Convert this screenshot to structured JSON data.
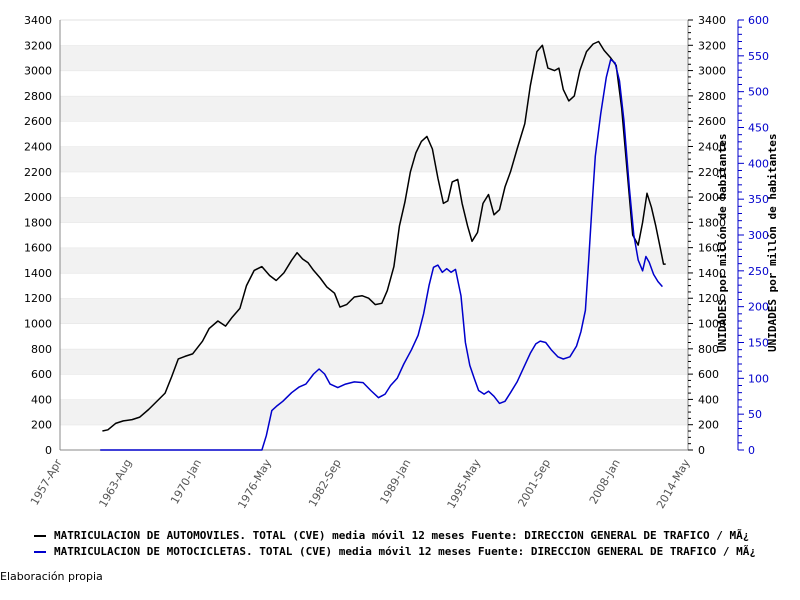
{
  "chart_data": {
    "type": "line",
    "x_ticks": [
      "1957-Apr",
      "1963-Aug",
      "1970-Jan",
      "1976-May",
      "1982-Sep",
      "1989-Jan",
      "1995-May",
      "2001-Sep",
      "2008-Jan",
      "2014-May"
    ],
    "ylim_left": [
      0,
      3400
    ],
    "yticks_left": [
      0,
      200,
      400,
      600,
      800,
      1000,
      1200,
      1400,
      1600,
      1800,
      2000,
      2200,
      2400,
      2600,
      2800,
      3000,
      3200,
      3400
    ],
    "ylim_right": [
      0,
      600
    ],
    "yticks_right": [
      0,
      50,
      100,
      150,
      200,
      250,
      300,
      350,
      400,
      450,
      500,
      550,
      600
    ],
    "ylabel_middle": "UNIDADES por millón de habitantes",
    "ylabel_right": "UNIDADES por millón de habitantes",
    "grid": "horizontal bands",
    "series": [
      {
        "name": "MATRICULACION DE AUTOMOVILES. TOTAL (CVE) media móvil 12 meses  Fuente: DIRECCION GENERAL DE TRAFICO / MÃ¿",
        "color": "#000000",
        "axis": "left",
        "points": [
          [
            1961.1,
            150
          ],
          [
            1961.6,
            160
          ],
          [
            1962.3,
            210
          ],
          [
            1963.0,
            230
          ],
          [
            1963.8,
            240
          ],
          [
            1964.5,
            260
          ],
          [
            1965.3,
            320
          ],
          [
            1966.0,
            380
          ],
          [
            1966.8,
            450
          ],
          [
            1967.4,
            580
          ],
          [
            1968.0,
            720
          ],
          [
            1968.6,
            740
          ],
          [
            1969.3,
            760
          ],
          [
            1970.2,
            860
          ],
          [
            1970.8,
            960
          ],
          [
            1971.6,
            1020
          ],
          [
            1972.3,
            980
          ],
          [
            1972.9,
            1050
          ],
          [
            1973.6,
            1120
          ],
          [
            1974.2,
            1300
          ],
          [
            1974.9,
            1420
          ],
          [
            1975.6,
            1450
          ],
          [
            1976.3,
            1380
          ],
          [
            1976.9,
            1340
          ],
          [
            1977.6,
            1400
          ],
          [
            1978.3,
            1500
          ],
          [
            1978.8,
            1560
          ],
          [
            1979.3,
            1510
          ],
          [
            1979.8,
            1480
          ],
          [
            1980.3,
            1420
          ],
          [
            1980.9,
            1360
          ],
          [
            1981.5,
            1290
          ],
          [
            1982.2,
            1240
          ],
          [
            1982.7,
            1130
          ],
          [
            1983.3,
            1150
          ],
          [
            1984.0,
            1210
          ],
          [
            1984.7,
            1220
          ],
          [
            1985.3,
            1200
          ],
          [
            1985.9,
            1150
          ],
          [
            1986.5,
            1160
          ],
          [
            1987.0,
            1260
          ],
          [
            1987.6,
            1450
          ],
          [
            1988.1,
            1770
          ],
          [
            1988.6,
            1960
          ],
          [
            1989.1,
            2200
          ],
          [
            1989.6,
            2350
          ],
          [
            1990.1,
            2440
          ],
          [
            1990.6,
            2480
          ],
          [
            1991.1,
            2380
          ],
          [
            1991.6,
            2150
          ],
          [
            1992.1,
            1950
          ],
          [
            1992.5,
            1970
          ],
          [
            1992.9,
            2120
          ],
          [
            1993.4,
            2140
          ],
          [
            1993.8,
            1950
          ],
          [
            1994.3,
            1770
          ],
          [
            1994.7,
            1650
          ],
          [
            1995.2,
            1720
          ],
          [
            1995.7,
            1950
          ],
          [
            1996.2,
            2020
          ],
          [
            1996.7,
            1860
          ],
          [
            1997.2,
            1900
          ],
          [
            1997.7,
            2080
          ],
          [
            1998.2,
            2200
          ],
          [
            1998.8,
            2380
          ],
          [
            1999.5,
            2580
          ],
          [
            2000.0,
            2880
          ],
          [
            2000.6,
            3150
          ],
          [
            2001.1,
            3200
          ],
          [
            2001.6,
            3020
          ],
          [
            2002.2,
            3000
          ],
          [
            2002.6,
            3020
          ],
          [
            2003.0,
            2850
          ],
          [
            2003.5,
            2760
          ],
          [
            2004.0,
            2800
          ],
          [
            2004.5,
            3000
          ],
          [
            2005.1,
            3150
          ],
          [
            2005.7,
            3210
          ],
          [
            2006.2,
            3230
          ],
          [
            2006.7,
            3160
          ],
          [
            2007.3,
            3100
          ],
          [
            2007.8,
            3040
          ],
          [
            2008.3,
            2700
          ],
          [
            2008.8,
            2200
          ],
          [
            2009.3,
            1700
          ],
          [
            2009.8,
            1620
          ],
          [
            2010.2,
            1800
          ],
          [
            2010.6,
            2030
          ],
          [
            2011.0,
            1920
          ],
          [
            2011.4,
            1770
          ],
          [
            2011.8,
            1600
          ],
          [
            2012.1,
            1470
          ],
          [
            2012.3,
            1470
          ]
        ]
      },
      {
        "name": "MATRICULACION DE MOTOCICLETAS. TOTAL (CVE) media móvil 12 meses  Fuente: DIRECCION GENERAL DE TRAFICO / MÃ¿",
        "color": "#0000cc",
        "axis": "right",
        "points": [
          [
            1960.9,
            0
          ],
          [
            1965.0,
            0
          ],
          [
            1970.0,
            0
          ],
          [
            1975.6,
            0
          ],
          [
            1976.0,
            20
          ],
          [
            1976.5,
            55
          ],
          [
            1977.0,
            62
          ],
          [
            1977.5,
            68
          ],
          [
            1978.3,
            80
          ],
          [
            1979.0,
            88
          ],
          [
            1979.6,
            92
          ],
          [
            1980.3,
            106
          ],
          [
            1980.8,
            113
          ],
          [
            1981.3,
            106
          ],
          [
            1981.8,
            92
          ],
          [
            1982.5,
            87
          ],
          [
            1983.2,
            92
          ],
          [
            1984.0,
            95
          ],
          [
            1984.8,
            94
          ],
          [
            1985.5,
            83
          ],
          [
            1986.2,
            73
          ],
          [
            1986.8,
            78
          ],
          [
            1987.3,
            90
          ],
          [
            1987.9,
            100
          ],
          [
            1988.5,
            120
          ],
          [
            1989.2,
            140
          ],
          [
            1989.8,
            160
          ],
          [
            1990.3,
            190
          ],
          [
            1990.8,
            230
          ],
          [
            1991.2,
            255
          ],
          [
            1991.6,
            258
          ],
          [
            1992.0,
            248
          ],
          [
            1992.4,
            253
          ],
          [
            1992.8,
            248
          ],
          [
            1993.2,
            252
          ],
          [
            1993.7,
            215
          ],
          [
            1994.1,
            150
          ],
          [
            1994.5,
            118
          ],
          [
            1994.9,
            100
          ],
          [
            1995.3,
            83
          ],
          [
            1995.8,
            78
          ],
          [
            1996.2,
            82
          ],
          [
            1996.7,
            75
          ],
          [
            1997.2,
            65
          ],
          [
            1997.7,
            68
          ],
          [
            1998.2,
            80
          ],
          [
            1998.8,
            95
          ],
          [
            1999.4,
            115
          ],
          [
            2000.0,
            135
          ],
          [
            2000.5,
            148
          ],
          [
            2000.9,
            152
          ],
          [
            2001.4,
            150
          ],
          [
            2001.9,
            140
          ],
          [
            2002.5,
            130
          ],
          [
            2003.0,
            127
          ],
          [
            2003.6,
            130
          ],
          [
            2004.2,
            145
          ],
          [
            2004.6,
            165
          ],
          [
            2005.0,
            195
          ],
          [
            2005.3,
            265
          ],
          [
            2005.6,
            340
          ],
          [
            2005.9,
            410
          ],
          [
            2006.4,
            470
          ],
          [
            2006.9,
            520
          ],
          [
            2007.3,
            545
          ],
          [
            2007.7,
            540
          ],
          [
            2008.1,
            515
          ],
          [
            2008.5,
            460
          ],
          [
            2009.0,
            365
          ],
          [
            2009.4,
            300
          ],
          [
            2009.8,
            265
          ],
          [
            2010.2,
            250
          ],
          [
            2010.5,
            270
          ],
          [
            2010.8,
            262
          ],
          [
            2011.2,
            245
          ],
          [
            2011.6,
            235
          ],
          [
            2012.0,
            228
          ]
        ]
      }
    ],
    "x_min": 1957.25,
    "x_max": 2014.33
  },
  "footer": "Elaboración propia"
}
